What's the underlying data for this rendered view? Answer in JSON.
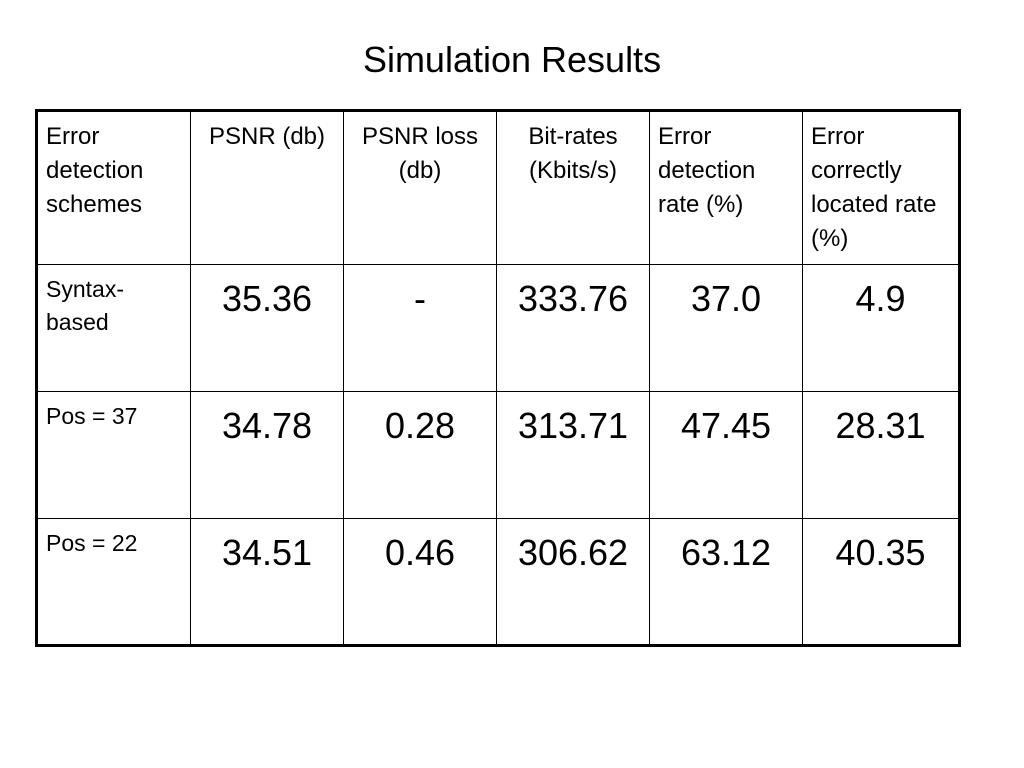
{
  "title": "Simulation Results",
  "table": {
    "headers": [
      "Error detection schemes",
      "PSNR (db)",
      "PSNR loss (db)",
      "Bit-rates (Kbits/s)",
      "Error detection rate (%)",
      "Error correctly located rate (%)"
    ],
    "rows": [
      [
        "Syntax-based",
        "35.36",
        "-",
        "333.76",
        "37.0",
        "4.9"
      ],
      [
        "Pos = 37",
        "34.78",
        "0.28",
        "313.71",
        "47.45",
        "28.31"
      ],
      [
        "Pos = 22",
        "34.51",
        "0.46",
        "306.62",
        "63.12",
        "40.35"
      ]
    ]
  }
}
